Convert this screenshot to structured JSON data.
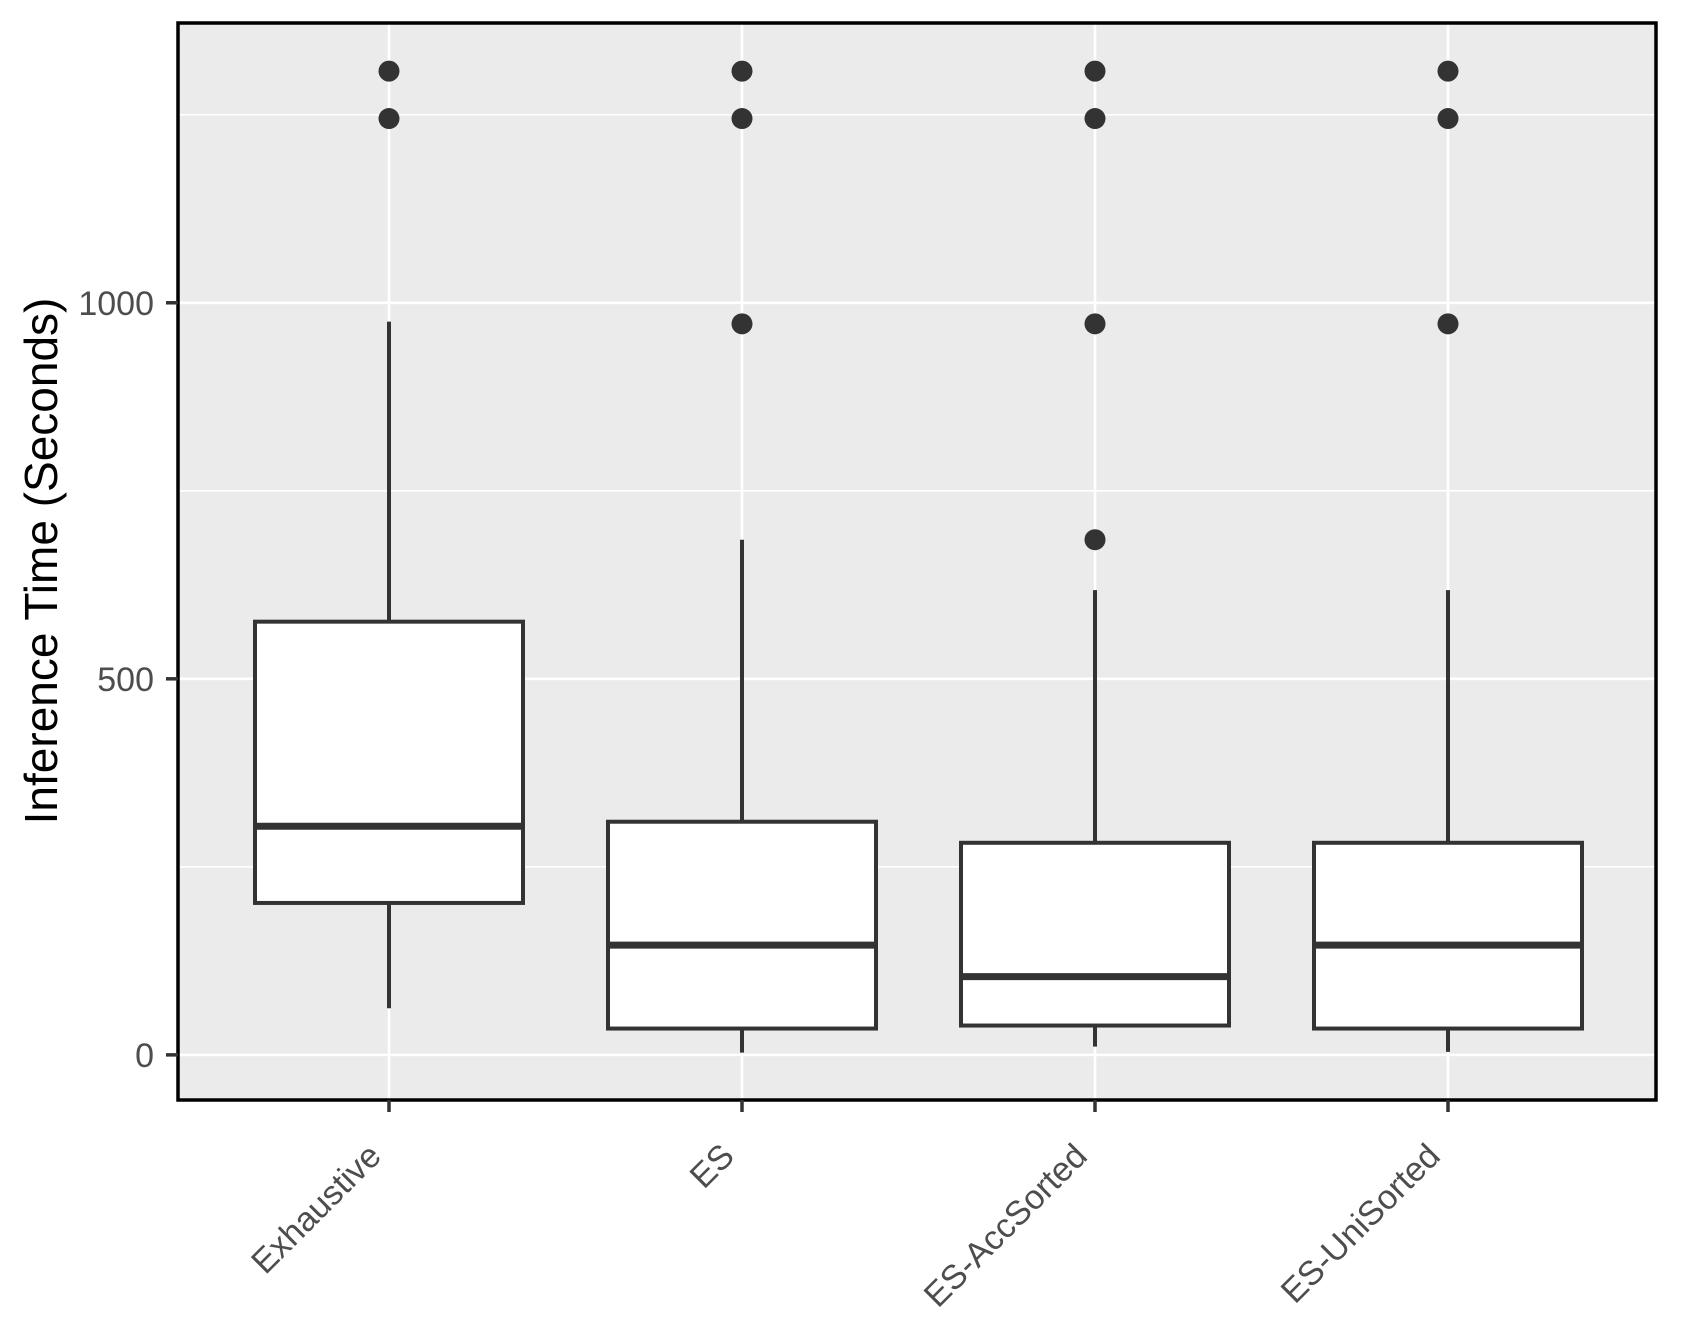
{
  "chart_data": {
    "type": "box",
    "title": "",
    "xlabel": "",
    "ylabel": "Inference Time (Seconds)",
    "ylim": [
      -60,
      1372
    ],
    "grid": "on",
    "legend": "none",
    "categories": [
      "Exhaustive",
      "ES",
      "ES-AccSorted",
      "ES-UniSorted"
    ],
    "series": [
      {
        "name": "Exhaustive",
        "whisker_low": 62,
        "q1": 202,
        "median": 304,
        "q3": 576,
        "whisker_high": 975,
        "outliers": [
          1245,
          1308
        ]
      },
      {
        "name": "ES",
        "whisker_low": 3,
        "q1": 35,
        "median": 146,
        "q3": 310,
        "whisker_high": 685,
        "outliers": [
          972,
          1245,
          1308
        ]
      },
      {
        "name": "ES-AccSorted",
        "whisker_low": 11,
        "q1": 39,
        "median": 104,
        "q3": 282,
        "whisker_high": 618,
        "outliers": [
          685,
          972,
          1245,
          1308
        ]
      },
      {
        "name": "ES-UniSorted",
        "whisker_low": 4,
        "q1": 35,
        "median": 146,
        "q3": 282,
        "whisker_high": 618,
        "outliers": [
          972,
          1245,
          1308
        ]
      }
    ],
    "y_axis": {
      "ticks": [
        {
          "value": 0,
          "label": "0"
        },
        {
          "value": 500,
          "label": "500"
        },
        {
          "value": 1000,
          "label": "1000"
        }
      ],
      "major_gridlines": [
        0,
        500,
        1000
      ],
      "minor_gridlines": [
        250,
        750,
        1250
      ]
    },
    "colors": {
      "panel_background": "#ebebeb",
      "gridline": "#ffffff",
      "panel_border": "#000000",
      "box_stroke": "#333333",
      "box_fill": "#ffffff",
      "median": "#333333",
      "whisker": "#333333",
      "outlier": "#333333",
      "tick_mark": "#333333",
      "tick_label": "#4d4d4d",
      "axis_title": "#000000"
    }
  }
}
